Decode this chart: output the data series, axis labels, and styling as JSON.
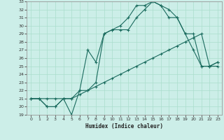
{
  "xlabel": "Humidex (Indice chaleur)",
  "xlim": [
    -0.5,
    23.5
  ],
  "ylim": [
    19,
    33
  ],
  "xticks": [
    0,
    1,
    2,
    3,
    4,
    5,
    6,
    7,
    8,
    9,
    10,
    11,
    12,
    13,
    14,
    15,
    16,
    17,
    18,
    19,
    20,
    21,
    22,
    23
  ],
  "yticks": [
    19,
    20,
    21,
    22,
    23,
    24,
    25,
    26,
    27,
    28,
    29,
    30,
    31,
    32,
    33
  ],
  "bg_color": "#cceee8",
  "grid_color": "#aaddcc",
  "line_color": "#1a6b5e",
  "line1_x": [
    0,
    1,
    2,
    3,
    4,
    5,
    6,
    7,
    8,
    9,
    10,
    11,
    12,
    13,
    14,
    15,
    16,
    17,
    18,
    19,
    20,
    21,
    22,
    23
  ],
  "line1_y": [
    21,
    21,
    20,
    20,
    21,
    19,
    22,
    22,
    23,
    29,
    29.5,
    29.5,
    29.5,
    31,
    32,
    33,
    32.5,
    31,
    31,
    29,
    27,
    25,
    25,
    25
  ],
  "line2_x": [
    0,
    1,
    2,
    3,
    4,
    5,
    6,
    7,
    8,
    9,
    10,
    11,
    12,
    13,
    14,
    15,
    16,
    17,
    18,
    19,
    20,
    21,
    22,
    23
  ],
  "line2_y": [
    21,
    21,
    20,
    20,
    21,
    21,
    22,
    27,
    25.5,
    29,
    29.5,
    30,
    31,
    32.5,
    32.5,
    33,
    32.5,
    32,
    31,
    29,
    29,
    25,
    25,
    25.5
  ],
  "line3_x": [
    0,
    1,
    2,
    3,
    4,
    5,
    6,
    7,
    8,
    9,
    10,
    11,
    12,
    13,
    14,
    15,
    16,
    17,
    18,
    19,
    20,
    21,
    22,
    23
  ],
  "line3_y": [
    21,
    21,
    21,
    21,
    21,
    21,
    21.5,
    22,
    22.5,
    23,
    23.5,
    24,
    24.5,
    25,
    25.5,
    26,
    26.5,
    27,
    27.5,
    28,
    28.5,
    29,
    25,
    25.5
  ]
}
